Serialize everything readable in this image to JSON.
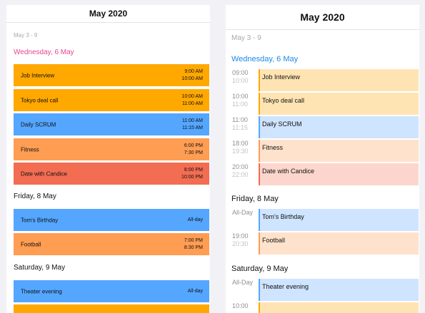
{
  "left": {
    "header": "May 2020",
    "range": "May 3 - 9",
    "days": [
      {
        "label": "Wednesday, 6 May"
      },
      {
        "label": "Friday, 8 May"
      },
      {
        "label": "Saturday, 9 May"
      }
    ],
    "events": [
      {
        "title": "Job Interview",
        "start": "9:00 AM",
        "end": "10:00 AM",
        "color": "#ffa800"
      },
      {
        "title": "Tokyo deal call",
        "start": "10:00 AM",
        "end": "11:00 AM",
        "color": "#ffa800"
      },
      {
        "title": "Daily SCRUM",
        "start": "11:00 AM",
        "end": "11:15 AM",
        "color": "#55a6ff"
      },
      {
        "title": "Fitness",
        "start": "6:00 PM",
        "end": "7:30 PM",
        "color": "#ff9d52"
      },
      {
        "title": "Date with Candice",
        "start": "8:00 PM",
        "end": "10:00 PM",
        "color": "#f26d52"
      },
      {
        "title": "Tom's Birthday",
        "allday": "All-day",
        "color": "#55a6ff"
      },
      {
        "title": "Football",
        "start": "7:00 PM",
        "end": "8:30 PM",
        "color": "#ff9d52"
      },
      {
        "title": "Theater evening",
        "allday": "All-day",
        "color": "#55a6ff"
      }
    ]
  },
  "right": {
    "header": "May 2020",
    "range": "May 3 - 9",
    "days": [
      {
        "label": "Wednesday, 6 May"
      },
      {
        "label": "Friday, 8 May"
      },
      {
        "label": "Saturday, 9 May"
      }
    ],
    "events": [
      {
        "title": "Job Interview",
        "start": "09:00",
        "end": "10:00",
        "bg": "#ffe4b3",
        "bar": "#ffa800"
      },
      {
        "title": "Tokyo deal call",
        "start": "10:00",
        "end": "11:00",
        "bg": "#ffe4b3",
        "bar": "#ffa800"
      },
      {
        "title": "Daily SCRUM",
        "start": "11:00",
        "end": "11:15",
        "bg": "#cfe4ff",
        "bar": "#55a6ff"
      },
      {
        "title": "Fitness",
        "start": "18:00",
        "end": "19:30",
        "bg": "#ffe2cc",
        "bar": "#ff9d52"
      },
      {
        "title": "Date with Candice",
        "start": "20:00",
        "end": "22:00",
        "bg": "#fcd6cc",
        "bar": "#f26d52"
      },
      {
        "title": "Tom's Birthday",
        "start": "All-Day",
        "end": "",
        "bg": "#cfe4ff",
        "bar": "#55a6ff"
      },
      {
        "title": "Football",
        "start": "19:00",
        "end": "20:30",
        "bg": "#ffe2cc",
        "bar": "#ff9d52"
      },
      {
        "title": "Theater evening",
        "start": "All-Day",
        "end": "",
        "bg": "#cfe4ff",
        "bar": "#55a6ff"
      },
      {
        "title": "",
        "start": "10:00",
        "end": "",
        "bg": "#ffe4b3",
        "bar": "#ffa800"
      }
    ]
  }
}
